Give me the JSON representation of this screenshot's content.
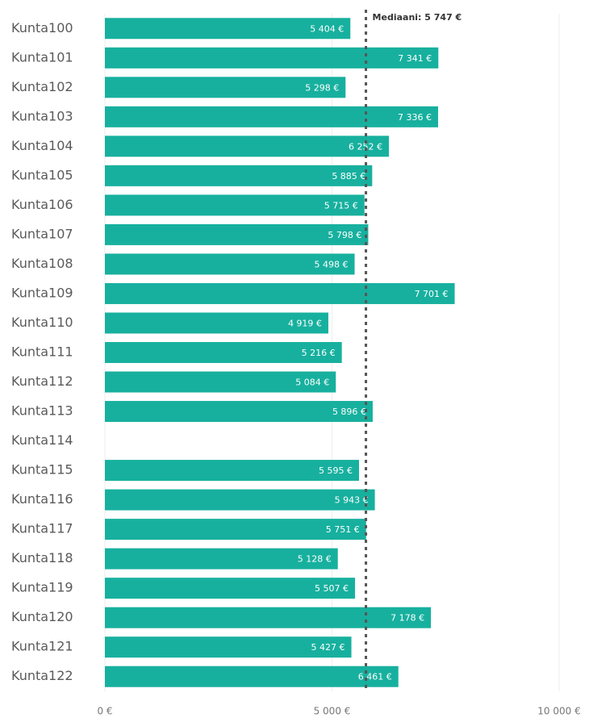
{
  "chart_data": {
    "type": "bar",
    "orientation": "horizontal",
    "categories": [
      "Kunta100",
      "Kunta101",
      "Kunta102",
      "Kunta103",
      "Kunta104",
      "Kunta105",
      "Kunta106",
      "Kunta107",
      "Kunta108",
      "Kunta109",
      "Kunta110",
      "Kunta111",
      "Kunta112",
      "Kunta113",
      "Kunta114",
      "Kunta115",
      "Kunta116",
      "Kunta117",
      "Kunta118",
      "Kunta119",
      "Kunta120",
      "Kunta121",
      "Kunta122"
    ],
    "values": [
      5404,
      7341,
      5298,
      7336,
      6252,
      5885,
      5715,
      5798,
      5498,
      7701,
      4919,
      5216,
      5084,
      5896,
      null,
      5595,
      5943,
      5751,
      5128,
      5507,
      7178,
      5427,
      6461
    ],
    "value_labels": [
      "5 404 €",
      "7 341 €",
      "5 298 €",
      "7 336 €",
      "6 252 €",
      "5 885 €",
      "5 715 €",
      "5 798 €",
      "5 498 €",
      "7 701 €",
      "4 919 €",
      "5 216 €",
      "5 084 €",
      "5 896 €",
      null,
      "5 595 €",
      "5 943 €",
      "5 751 €",
      "5 128 €",
      "5 507 €",
      "7 178 €",
      "5 427 €",
      "6 461 €"
    ],
    "color": "#17b09e",
    "xlim": [
      0,
      10000
    ],
    "xticks": [
      {
        "value": 0,
        "label": "0 €"
      },
      {
        "value": 5000,
        "label": "5 000 €"
      },
      {
        "value": 10000,
        "label": "10 000 €"
      }
    ],
    "grid": true,
    "median": {
      "value": 5747,
      "label": "Mediaani: 5 747 €"
    }
  }
}
